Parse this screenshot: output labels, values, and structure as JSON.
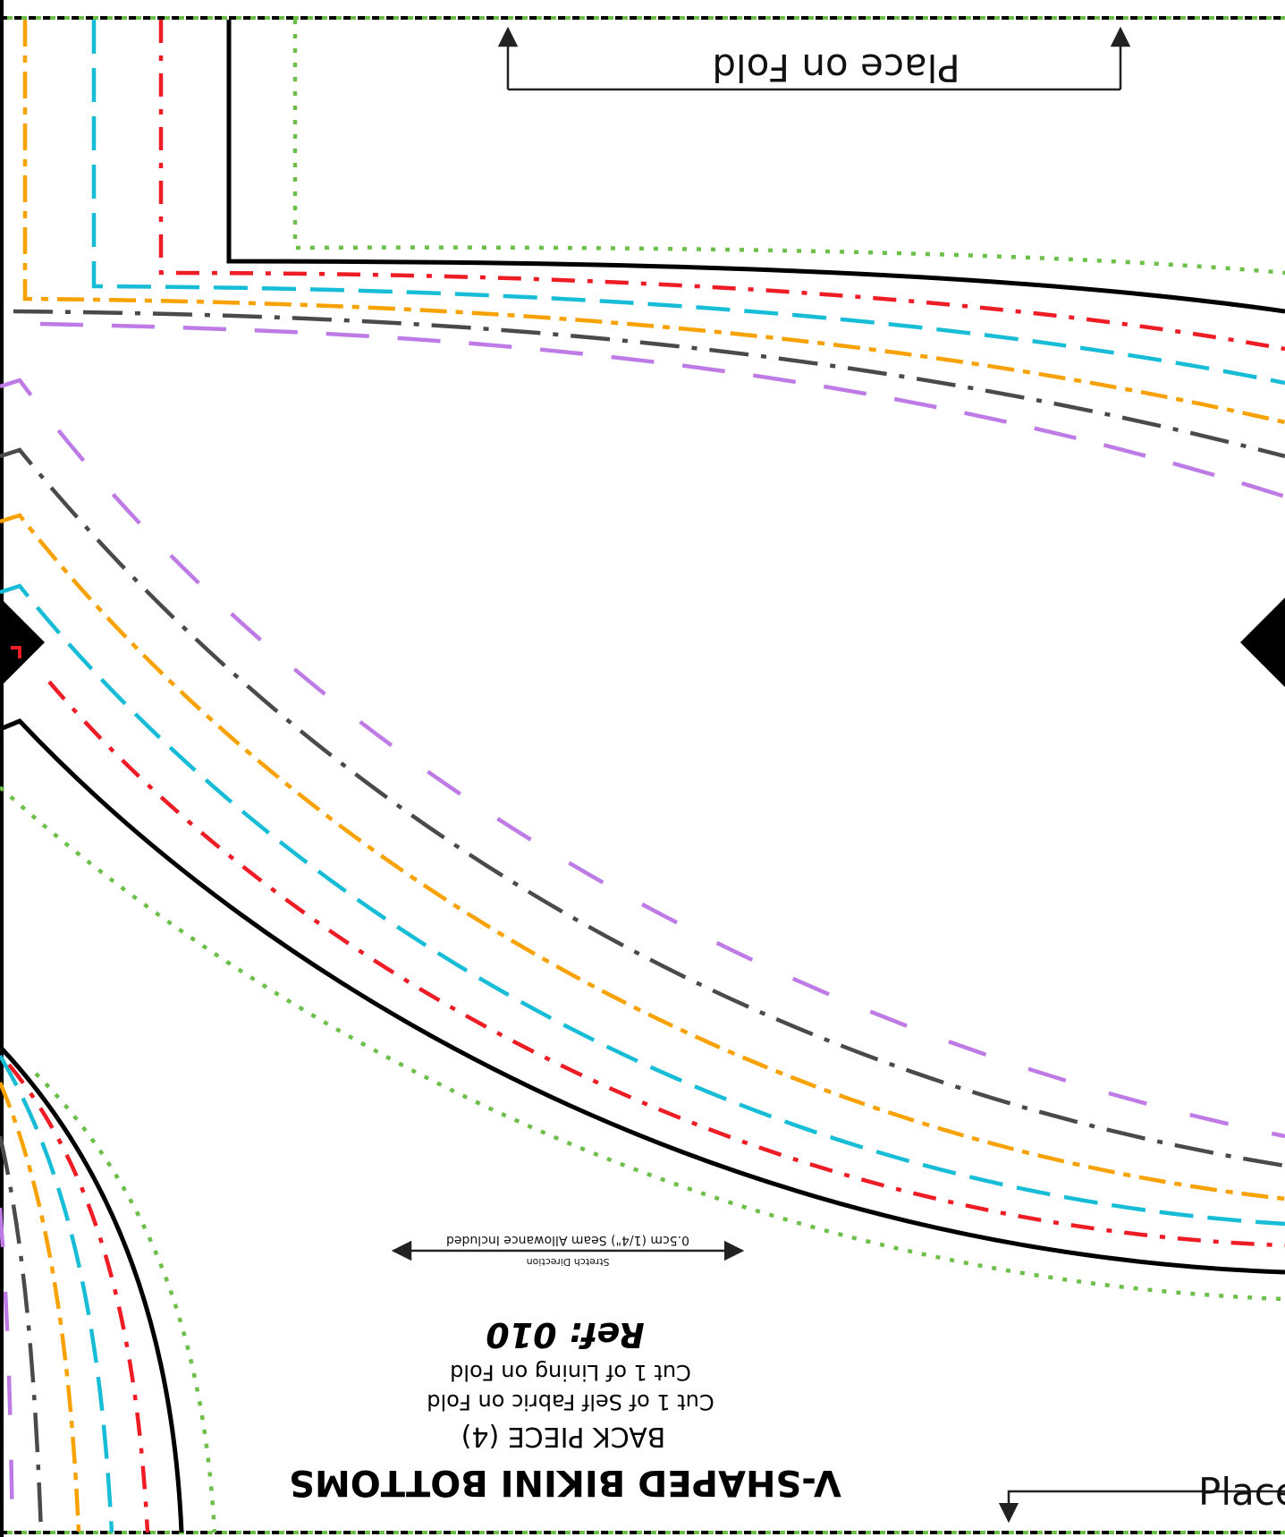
{
  "pattern": {
    "title": "V-SHAPED BIKINI BOTTOMS",
    "piece": "BACK PIECE (4)",
    "cut_self": "Cut 1 of Self Fabric on Fold",
    "cut_lining": "Cut 1 of Lining on Fold",
    "ref": "Ref: 010",
    "stretch_label": "Stretch Direction",
    "seam_allowance": "0.5cm (1/4\") Seam Allowance Included",
    "fold_top": "Place on Fold",
    "fold_bottom": "Place o"
  },
  "size_line_colors": {
    "black": "#000000",
    "green": "#6cc04a",
    "red": "#ee1c25",
    "cyan": "#17bcd6",
    "orange": "#f7a200",
    "grey": "#4a4a4a",
    "purple": "#be7be6"
  }
}
